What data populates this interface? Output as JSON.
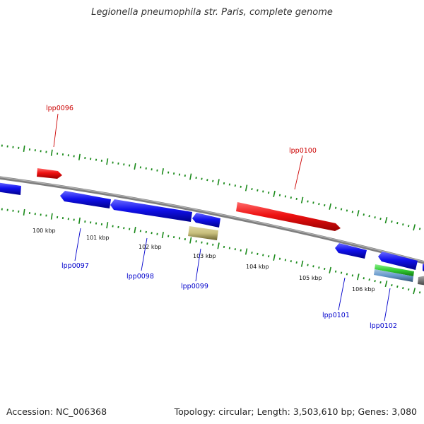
{
  "header": {
    "title": "Legionella pneumophila str. Paris, complete genome"
  },
  "footer": {
    "accession": "Accession: NC_006368",
    "summary": "Topology: circular; Length: 3,503,610 bp; Genes: 3,080"
  },
  "colors": {
    "background": "#ffffff",
    "backbone": "#8a8a8a",
    "tick": "#1a8a1a",
    "gene_forward_label": "#cc0000",
    "gene_reverse_label": "#0000cc",
    "forward_gene": "#ee1111",
    "reverse_gene": "#1111ee",
    "pseudo_gene": "#c8bf7c",
    "rna_green": "#33cc33",
    "rna_blue": "#6699cc"
  },
  "scale_labels": [
    "100 kbp",
    "101 kbp",
    "102 kbp",
    "103 kbp",
    "104 kbp",
    "105 kbp",
    "106 kbp"
  ],
  "genes": [
    {
      "name": "lpp0096",
      "strand": "forward"
    },
    {
      "name": "lpp0097",
      "strand": "reverse"
    },
    {
      "name": "lpp0098",
      "strand": "reverse"
    },
    {
      "name": "lpp0099",
      "strand": "reverse"
    },
    {
      "name": "lpp0100",
      "strand": "forward"
    },
    {
      "name": "lpp0101",
      "strand": "reverse"
    },
    {
      "name": "lpp0102",
      "strand": "reverse"
    }
  ]
}
